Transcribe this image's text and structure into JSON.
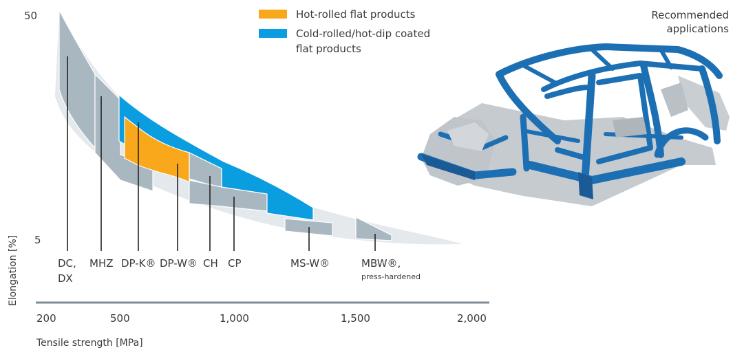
{
  "chart_data": {
    "type": "area",
    "title": "",
    "xlabel": "Tensile strength [MPa]",
    "ylabel": "Elongation [%]",
    "xlim": [
      200,
      2000
    ],
    "ylim": [
      5,
      50
    ],
    "x_ticks": [
      "200",
      "500",
      "1,000",
      "1,500",
      "2,000"
    ],
    "y_ticks": [
      "5",
      "50"
    ],
    "legend": [
      {
        "name": "Hot-rolled flat products",
        "color": "#f9a81c"
      },
      {
        "name": "Cold-rolled/hot-dip coated flat products",
        "color": "#0a9de0"
      }
    ],
    "legend_placement": "top-center",
    "series": [
      {
        "name": "Hot-rolled flat products",
        "grade": "DP-K®",
        "tensile_min": 580,
        "tensile_max": 760,
        "elongation_range": [
          11,
          22
        ]
      },
      {
        "name": "Cold-rolled/hot-dip coated flat products",
        "grades": [
          "DP-K®",
          "DP-W®",
          "CH",
          "CP",
          "MS-W®"
        ],
        "tensile_min": 500,
        "tensile_max": 1330,
        "elongation_range": [
          7,
          27
        ]
      }
    ],
    "grades": [
      {
        "label": "DC,",
        "label2": "DX",
        "x": 270
      },
      {
        "label": "MHZ",
        "x": 420
      },
      {
        "label": "DP-K®",
        "x": 580
      },
      {
        "label": "DP-W®",
        "x": 750
      },
      {
        "label": "CH",
        "x": 910
      },
      {
        "label": "CP",
        "x": 1000
      },
      {
        "label": "MS-W®",
        "x": 1300
      },
      {
        "label": "MBW®,",
        "label2": "press-hardened",
        "x": 1600
      }
    ]
  },
  "side_note": "Recommended\napplications",
  "colors": {
    "hot_rolled": "#f9a81c",
    "cold_rolled": "#0a9de0",
    "gray_box": "#a9b7c0",
    "band": "#e3e8ec"
  }
}
